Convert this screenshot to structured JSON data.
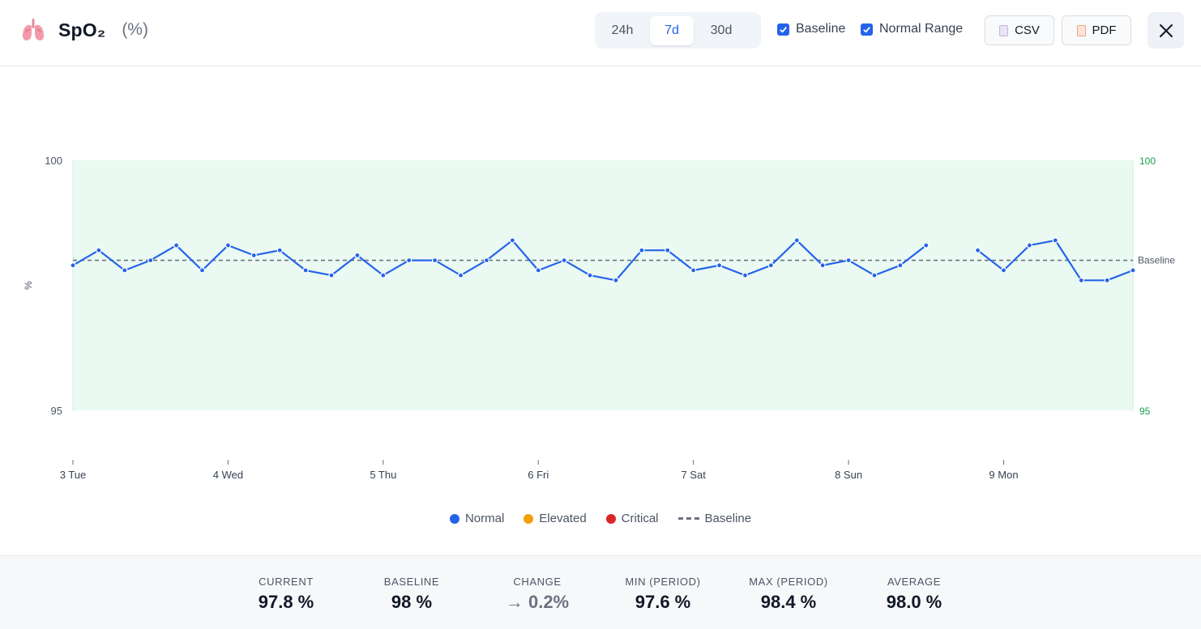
{
  "header": {
    "title": "SpO₂",
    "unit": "(%)",
    "icon": "lungs-icon",
    "ranges": [
      "24h",
      "7d",
      "30d"
    ],
    "active_range": "7d",
    "toggles": [
      {
        "label": "Baseline",
        "checked": true
      },
      {
        "label": "Normal Range",
        "checked": true
      }
    ],
    "export": [
      {
        "label": "CSV",
        "icon": "csv-file-icon"
      },
      {
        "label": "PDF",
        "icon": "pdf-file-icon"
      }
    ]
  },
  "colors": {
    "normal": "#2563eb",
    "elevated": "#f59e0b",
    "critical": "#dc2626",
    "baseline": "#6b7280",
    "normal_range_fill": "#eafaf2",
    "right_axis": "#16a34a"
  },
  "chart_data": {
    "type": "line",
    "ylabel": "%",
    "ylim": [
      95,
      100
    ],
    "y_ticks": [
      "100",
      "95"
    ],
    "right_y_ticks": [
      "100",
      "95"
    ],
    "x_ticks": [
      "3 Tue",
      "4 Wed",
      "5 Thu",
      "6 Fri",
      "7 Sat",
      "8 Sun",
      "9 Mon"
    ],
    "x_unit": "days since 3 Tue",
    "baseline": 98.0,
    "baseline_label": "Baseline",
    "normal_range": [
      95,
      100
    ],
    "grid": false,
    "series": [
      {
        "name": "Normal",
        "x": [
          0,
          0.1667,
          0.3333,
          0.5,
          0.6667,
          0.8333,
          1.0,
          1.1667,
          1.3333,
          1.5,
          1.6667,
          1.8333,
          2.0,
          2.1667,
          2.3333,
          2.5,
          2.6667,
          2.8333,
          3.0,
          3.1667,
          3.3333,
          3.5,
          3.6667,
          3.8333,
          4.0,
          4.1667,
          4.3333,
          4.5,
          4.6667,
          4.8333,
          5.0,
          5.1667,
          5.3333,
          5.5,
          null,
          5.8333,
          6.0,
          6.1667,
          6.3333,
          6.5,
          6.6667,
          6.8333
        ],
        "values": [
          97.9,
          98.2,
          97.8,
          98.0,
          98.3,
          97.8,
          98.3,
          98.1,
          98.2,
          97.8,
          97.7,
          98.1,
          97.7,
          98.0,
          98.0,
          97.7,
          98.0,
          98.4,
          97.8,
          98.0,
          97.7,
          97.6,
          98.2,
          98.2,
          97.8,
          97.9,
          97.7,
          97.9,
          98.4,
          97.9,
          98.0,
          97.7,
          97.9,
          98.3,
          null,
          98.2,
          97.8,
          98.3,
          98.4,
          97.6,
          97.6,
          97.8
        ]
      }
    ],
    "legend": [
      "Normal",
      "Elevated",
      "Critical",
      "Baseline"
    ],
    "legend_position": "bottom-center"
  },
  "stats": [
    {
      "label": "CURRENT",
      "value": "97.8 %"
    },
    {
      "label": "BASELINE",
      "value": "98 %"
    },
    {
      "label": "CHANGE",
      "value": "→ 0.2%"
    },
    {
      "label": "MIN (PERIOD)",
      "value": "97.6 %"
    },
    {
      "label": "MAX (PERIOD)",
      "value": "98.4 %"
    },
    {
      "label": "AVERAGE",
      "value": "98.0 %"
    }
  ]
}
